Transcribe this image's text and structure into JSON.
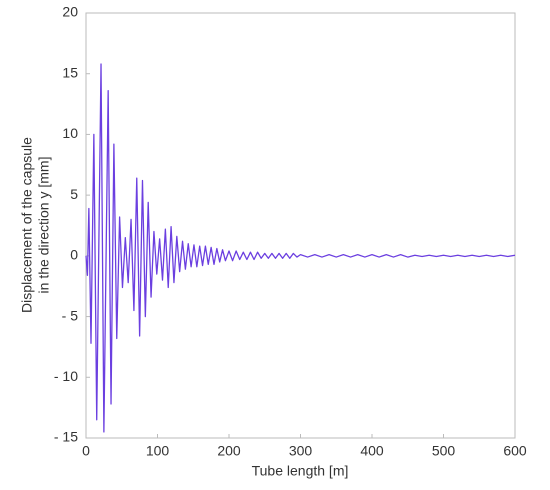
{
  "chart_data": {
    "type": "line",
    "xlabel": "Tube length [m]",
    "ylabel": [
      "Displacement of the capsule",
      "in the direction y [mm]"
    ],
    "xlim": [
      0,
      600
    ],
    "ylim": [
      -15,
      20
    ],
    "xticks": [
      0,
      100,
      200,
      300,
      400,
      500,
      600
    ],
    "yticks": [
      20,
      15,
      10,
      5,
      0,
      {
        "value": -5,
        "label": "- 5"
      },
      {
        "value": -10,
        "label": "- 10"
      },
      {
        "value": -15,
        "label": "- 15"
      }
    ],
    "grid": false,
    "series": [
      {
        "color": "#6b3fe0",
        "x": [
          0,
          2,
          4,
          7,
          11,
          15,
          21,
          25,
          31,
          35,
          39,
          43,
          47,
          51,
          55,
          59,
          63,
          67,
          71,
          75,
          79,
          83,
          87,
          91,
          95,
          99,
          103,
          107,
          111,
          115,
          119,
          123,
          127,
          131,
          135,
          139,
          143,
          147,
          151,
          155,
          159,
          163,
          167,
          171,
          175,
          179,
          183,
          187,
          191,
          195,
          200,
          205,
          210,
          215,
          220,
          225,
          230,
          235,
          240,
          245,
          250,
          255,
          260,
          265,
          270,
          275,
          280,
          285,
          290,
          295,
          300,
          310,
          320,
          330,
          340,
          350,
          360,
          370,
          380,
          390,
          400,
          410,
          420,
          430,
          440,
          450,
          460,
          470,
          480,
          490,
          500,
          510,
          520,
          530,
          540,
          550,
          560,
          570,
          580,
          590,
          600
        ],
        "values": [
          0,
          -1.6,
          3.9,
          -7.2,
          10,
          -13.5,
          15.8,
          -14.5,
          13.6,
          -12.2,
          9.2,
          -6.8,
          3.2,
          -2.6,
          1.5,
          -2.2,
          3,
          -4.5,
          6.4,
          -6.6,
          6.2,
          -5,
          4.4,
          -3.4,
          2,
          -1.5,
          1.4,
          -2,
          2.2,
          -2.6,
          2.4,
          -2.2,
          1.6,
          -1.3,
          1.2,
          -1.1,
          1,
          -0.9,
          0.9,
          -0.9,
          0.8,
          -0.8,
          0.8,
          -0.7,
          0.7,
          -0.7,
          0.6,
          -0.5,
          0.5,
          -0.4,
          0.4,
          -0.4,
          0.4,
          -0.3,
          0.3,
          -0.3,
          0.3,
          -0.3,
          0.3,
          -0.2,
          0.2,
          -0.2,
          0.2,
          -0.2,
          0.2,
          -0.2,
          0.2,
          -0.2,
          0.2,
          -0.1,
          0.1,
          -0.1,
          0.1,
          -0.1,
          0.1,
          -0.1,
          0.1,
          -0.1,
          0.1,
          -0.1,
          0.1,
          -0.1,
          0.1,
          -0.1,
          0.1,
          -0.1,
          0.05,
          -0.05,
          0.05,
          -0.05,
          0.05,
          -0.05,
          0.05,
          -0.05,
          0.05,
          -0.05,
          0.05,
          -0.05,
          0.05,
          -0.05,
          0.05
        ]
      }
    ]
  }
}
